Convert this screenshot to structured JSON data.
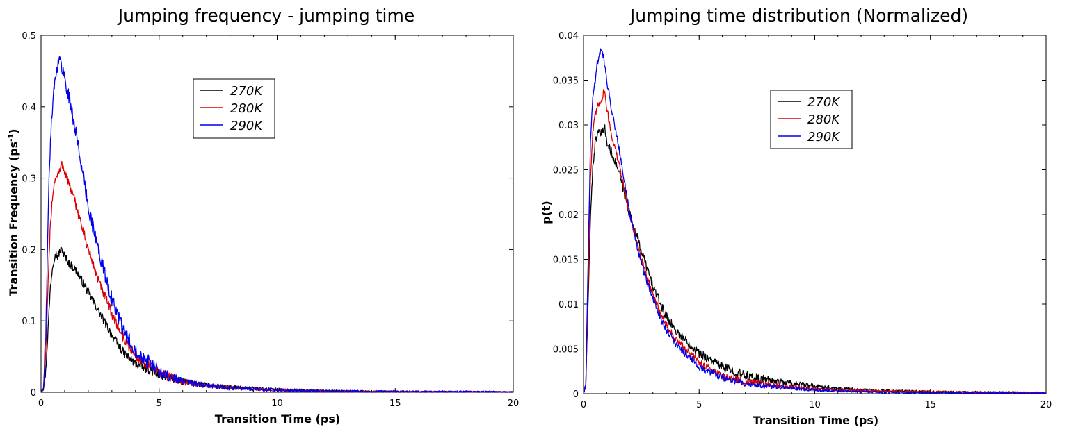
{
  "chart_data": [
    {
      "type": "line",
      "title": "Jumping frequency - jumping time",
      "xlabel": "Transition Time (ps)",
      "ylabel": "Transition Frequency (ps",
      "ylabel_superscript": "-1",
      "ylabel_suffix": ")",
      "xlim": [
        0,
        20
      ],
      "ylim": [
        0,
        0.5
      ],
      "xticks": [
        0,
        5,
        10,
        15,
        20
      ],
      "xtick_labels": [
        "0",
        "5",
        "10",
        "15",
        "20"
      ],
      "yticks": [
        0,
        0.1,
        0.2,
        0.3,
        0.4,
        0.5
      ],
      "ytick_labels": [
        "0",
        "0.1",
        "0.2",
        "0.3",
        "0.4",
        "0.5"
      ],
      "grid": false,
      "legend_position": "top-center",
      "series": [
        {
          "name": "270K",
          "color": "#000000",
          "noise": 0.006,
          "x": [
            0,
            0.1,
            0.2,
            0.3,
            0.4,
            0.5,
            0.6,
            0.7,
            0.8,
            0.9,
            1.0,
            1.2,
            1.5,
            2.0,
            2.5,
            3.0,
            3.5,
            4.0,
            5.0,
            6.0,
            7.0,
            8.0,
            10.0,
            12.0,
            15.0,
            20.0
          ],
          "y": [
            0,
            0.005,
            0.03,
            0.09,
            0.15,
            0.18,
            0.195,
            0.19,
            0.198,
            0.2,
            0.19,
            0.18,
            0.17,
            0.14,
            0.11,
            0.08,
            0.055,
            0.04,
            0.025,
            0.015,
            0.01,
            0.007,
            0.004,
            0.002,
            0.001,
            0.0003
          ]
        },
        {
          "name": "280K",
          "color": "#dd0000",
          "noise": 0.007,
          "x": [
            0,
            0.1,
            0.2,
            0.3,
            0.4,
            0.5,
            0.6,
            0.7,
            0.8,
            0.9,
            1.0,
            1.2,
            1.5,
            2.0,
            2.5,
            3.0,
            3.5,
            4.0,
            5.0,
            6.0,
            7.0,
            8.0,
            10.0,
            12.0,
            15.0,
            20.0
          ],
          "y": [
            0,
            0.005,
            0.05,
            0.15,
            0.24,
            0.28,
            0.3,
            0.305,
            0.31,
            0.32,
            0.31,
            0.29,
            0.26,
            0.2,
            0.15,
            0.11,
            0.075,
            0.05,
            0.027,
            0.015,
            0.009,
            0.006,
            0.003,
            0.0015,
            0.0007,
            0.0002
          ]
        },
        {
          "name": "290K",
          "color": "#0000ee",
          "noise": 0.01,
          "x": [
            0,
            0.1,
            0.2,
            0.3,
            0.4,
            0.5,
            0.6,
            0.7,
            0.8,
            0.9,
            1.0,
            1.2,
            1.5,
            2.0,
            2.5,
            3.0,
            3.5,
            4.0,
            5.0,
            6.0,
            7.0,
            8.0,
            10.0,
            12.0,
            15.0,
            20.0
          ],
          "y": [
            0,
            0.005,
            0.08,
            0.25,
            0.36,
            0.41,
            0.44,
            0.46,
            0.465,
            0.455,
            0.44,
            0.41,
            0.36,
            0.26,
            0.19,
            0.13,
            0.085,
            0.06,
            0.028,
            0.015,
            0.009,
            0.006,
            0.003,
            0.0015,
            0.0007,
            0.0002
          ]
        }
      ]
    },
    {
      "type": "line",
      "title": "Jumping time distribution (Normalized)",
      "xlabel": "Transition Time (ps)",
      "ylabel": "p(t)",
      "xlim": [
        0,
        20
      ],
      "ylim": [
        0,
        0.04
      ],
      "xticks": [
        0,
        5,
        10,
        15,
        20
      ],
      "xtick_labels": [
        "0",
        "5",
        "10",
        "15",
        "20"
      ],
      "yticks": [
        0,
        0.005,
        0.01,
        0.015,
        0.02,
        0.025,
        0.03,
        0.035,
        0.04
      ],
      "ytick_labels": [
        "0",
        "0.005",
        "0.01",
        "0.015",
        "0.02",
        "0.025",
        "0.03",
        "0.035",
        "0.04"
      ],
      "grid": false,
      "legend_position": "top-center",
      "series": [
        {
          "name": "270K",
          "color": "#000000",
          "noise": 0.0005,
          "x": [
            0,
            0.1,
            0.2,
            0.3,
            0.4,
            0.5,
            0.6,
            0.8,
            0.9,
            1.0,
            1.2,
            1.5,
            2.0,
            2.5,
            3.0,
            3.5,
            4.0,
            5.0,
            6.0,
            7.0,
            8.0,
            10.0,
            12.0,
            15.0,
            20.0
          ],
          "y": [
            0,
            0.001,
            0.01,
            0.02,
            0.025,
            0.028,
            0.029,
            0.029,
            0.03,
            0.028,
            0.027,
            0.025,
            0.02,
            0.016,
            0.012,
            0.009,
            0.007,
            0.0045,
            0.003,
            0.002,
            0.0015,
            0.0008,
            0.0004,
            0.0002,
            0.0001
          ]
        },
        {
          "name": "280K",
          "color": "#dd0000",
          "noise": 0.0004,
          "x": [
            0,
            0.1,
            0.2,
            0.3,
            0.4,
            0.5,
            0.6,
            0.8,
            0.9,
            1.0,
            1.2,
            1.5,
            2.0,
            2.5,
            3.0,
            3.5,
            4.0,
            5.0,
            6.0,
            7.0,
            8.0,
            10.0,
            12.0,
            15.0,
            20.0
          ],
          "y": [
            0,
            0.001,
            0.012,
            0.024,
            0.029,
            0.031,
            0.032,
            0.033,
            0.034,
            0.032,
            0.029,
            0.026,
            0.02,
            0.015,
            0.011,
            0.008,
            0.006,
            0.0035,
            0.002,
            0.0013,
            0.001,
            0.0005,
            0.0003,
            0.0002,
            0.0001
          ]
        },
        {
          "name": "290K",
          "color": "#0000ee",
          "noise": 0.0004,
          "x": [
            0,
            0.1,
            0.2,
            0.3,
            0.4,
            0.5,
            0.6,
            0.7,
            0.8,
            0.9,
            1.0,
            1.2,
            1.5,
            2.0,
            2.5,
            3.0,
            3.5,
            4.0,
            5.0,
            6.0,
            7.0,
            8.0,
            10.0,
            12.0,
            15.0,
            20.0
          ],
          "y": [
            0,
            0.001,
            0.015,
            0.028,
            0.033,
            0.035,
            0.037,
            0.038,
            0.0385,
            0.037,
            0.035,
            0.032,
            0.028,
            0.02,
            0.0145,
            0.0105,
            0.0075,
            0.0055,
            0.003,
            0.0018,
            0.0011,
            0.0008,
            0.0004,
            0.0002,
            0.0001,
            5e-05
          ]
        }
      ]
    }
  ]
}
